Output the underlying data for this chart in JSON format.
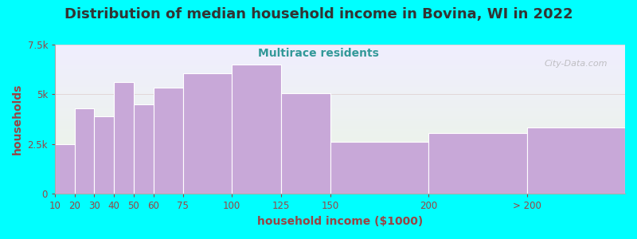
{
  "title": "Distribution of median household income in Bovina, WI in 2022",
  "subtitle": "Multirace residents",
  "xlabel": "household income ($1000)",
  "ylabel": "households",
  "bin_edges": [
    10,
    20,
    30,
    40,
    50,
    60,
    75,
    100,
    125,
    150,
    200,
    250
  ],
  "bin_labels": [
    "10",
    "20",
    "30",
    "40",
    "50",
    "60",
    "75",
    "100",
    "125",
    "150",
    "200",
    "> 200"
  ],
  "bar_values": [
    2500,
    4300,
    3900,
    5600,
    4500,
    5350,
    6050,
    6500,
    5050,
    2600,
    3050,
    3350
  ],
  "bar_color": "#C8A8D8",
  "bar_edge_color": "#ffffff",
  "ylim": [
    0,
    7500
  ],
  "yticks": [
    0,
    2500,
    5000,
    7500
  ],
  "ytick_labels": [
    "0",
    "2.5k",
    "5k",
    "7.5k"
  ],
  "bg_color": "#00FFFF",
  "plot_bg_top": "#eaf5e2",
  "plot_bg_bottom": "#f0eeff",
  "title_color": "#333333",
  "subtitle_color": "#339999",
  "axis_label_color": "#994444",
  "tick_color": "#994444",
  "watermark": "City-Data.com",
  "title_fontsize": 13,
  "subtitle_fontsize": 10,
  "label_fontsize": 10,
  "tick_fontsize": 8.5,
  "last_bar_width": 50
}
